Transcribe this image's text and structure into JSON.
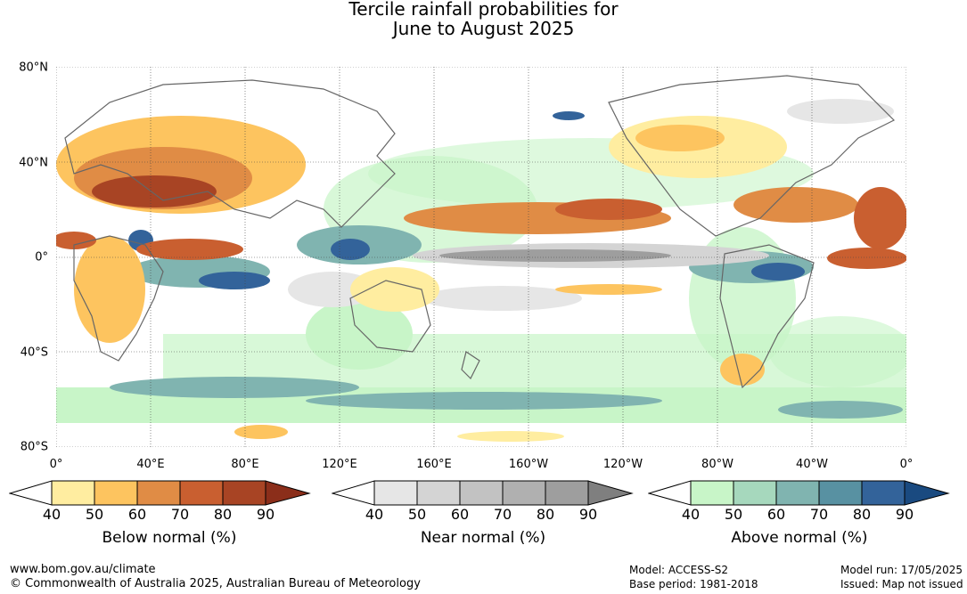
{
  "title": {
    "line1": "Tercile rainfall probabilities for",
    "line2": "June to August 2025"
  },
  "map": {
    "lat_labels": [
      "80°N",
      "40°N",
      "0°",
      "40°S",
      "80°S"
    ],
    "lon_labels": [
      "0°",
      "40°E",
      "80°E",
      "120°E",
      "160°E",
      "160°W",
      "120°W",
      "80°W",
      "40°W",
      "0°"
    ]
  },
  "legends": [
    {
      "caption": "Below normal (%)",
      "ticks": [
        "40",
        "50",
        "60",
        "70",
        "80",
        "90"
      ],
      "colors": [
        "#ffffff",
        "#ffeda0",
        "#fdc45f",
        "#e08c45",
        "#c95f30",
        "#a84424",
        "#8b2e1a"
      ]
    },
    {
      "caption": "Near normal (%)",
      "ticks": [
        "40",
        "50",
        "60",
        "70",
        "80",
        "90"
      ],
      "colors": [
        "#ffffff",
        "#e6e6e6",
        "#d4d4d4",
        "#c2c2c2",
        "#b0b0b0",
        "#9e9e9e",
        "#7f7f7f"
      ]
    },
    {
      "caption": "Above normal (%)",
      "ticks": [
        "40",
        "50",
        "60",
        "70",
        "80",
        "90"
      ],
      "colors": [
        "#ffffff",
        "#c8f5c8",
        "#a6d8bd",
        "#80b4b0",
        "#5891a2",
        "#33639a",
        "#1a4a80"
      ]
    }
  ],
  "footer": {
    "url": "www.bom.gov.au/climate",
    "copyright": "© Commonwealth of Australia 2025, Australian Bureau of Meteorology",
    "model": "Model: ACCESS-S2",
    "base_period": "Base period: 1981-2018",
    "model_run": "Model run: 17/05/2025",
    "issued": "Issued: Map not issued"
  }
}
